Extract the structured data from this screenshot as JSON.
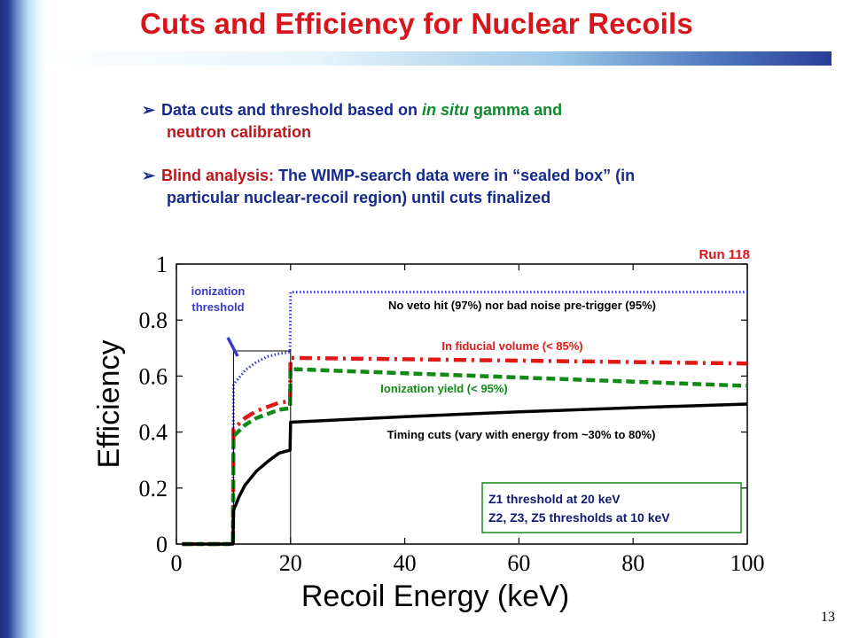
{
  "slide": {
    "title": "Cuts and Efficiency for Nuclear Recoils",
    "page_number": "13",
    "bullets": [
      {
        "marker": "➢",
        "parts": [
          {
            "text": "Data cuts and threshold based  on ",
            "color": "#142a8c",
            "italic": false
          },
          {
            "text": "in situ",
            "color": "#0f8a2e",
            "italic": true
          },
          {
            "text": " gamma and",
            "color": "#0f8a2e",
            "italic": false
          }
        ],
        "cont": [
          {
            "text": "neutron  calibration",
            "color": "#c0141c",
            "italic": false
          }
        ]
      },
      {
        "marker": "➢",
        "parts": [
          {
            "text": "Blind analysis:",
            "color": "#c0141c",
            "italic": false
          },
          {
            "text": " The WIMP-search  data were in “sealed box” (in",
            "color": "#142a8c",
            "italic": false
          }
        ],
        "cont": [
          {
            "text": "particular nuclear-recoil region) until cuts finalized",
            "color": "#142a8c",
            "italic": false
          }
        ]
      }
    ]
  },
  "chart_data": {
    "type": "line",
    "xlabel": "Recoil Energy (keV)",
    "ylabel": "Efficiency",
    "xlim": [
      0,
      100
    ],
    "ylim": [
      0,
      1
    ],
    "xticks": [
      "0",
      "20",
      "40",
      "60",
      "80",
      "100"
    ],
    "yticks": [
      "0",
      "0.2",
      "0.4",
      "0.6",
      "0.8",
      "1"
    ],
    "run_label": "Run 118",
    "series": [
      {
        "key": "veto",
        "color": "#3a3ac8",
        "style": "dotted",
        "points": [
          [
            1,
            0
          ],
          [
            9.9,
            0
          ],
          [
            10,
            0.57
          ],
          [
            12,
            0.62
          ],
          [
            14,
            0.65
          ],
          [
            16,
            0.67
          ],
          [
            18,
            0.68
          ],
          [
            19.9,
            0.685
          ],
          [
            20,
            0.9
          ],
          [
            30,
            0.9
          ],
          [
            50,
            0.9
          ],
          [
            70,
            0.9
          ],
          [
            100,
            0.9
          ]
        ]
      },
      {
        "key": "fiducial",
        "color": "#e01818",
        "style": "dashdot",
        "points": [
          [
            1,
            0
          ],
          [
            9.9,
            0
          ],
          [
            10,
            0.41
          ],
          [
            12,
            0.45
          ],
          [
            14,
            0.475
          ],
          [
            16,
            0.49
          ],
          [
            18,
            0.505
          ],
          [
            19.9,
            0.51
          ],
          [
            20,
            0.665
          ],
          [
            40,
            0.66
          ],
          [
            60,
            0.655
          ],
          [
            80,
            0.65
          ],
          [
            100,
            0.645
          ]
        ]
      },
      {
        "key": "yield",
        "color": "#138a18",
        "style": "dashed",
        "points": [
          [
            1,
            0
          ],
          [
            9.9,
            0
          ],
          [
            10,
            0.385
          ],
          [
            12,
            0.425
          ],
          [
            14,
            0.45
          ],
          [
            16,
            0.465
          ],
          [
            18,
            0.48
          ],
          [
            19.9,
            0.485
          ],
          [
            20,
            0.625
          ],
          [
            40,
            0.61
          ],
          [
            60,
            0.595
          ],
          [
            80,
            0.58
          ],
          [
            100,
            0.565
          ]
        ]
      },
      {
        "key": "timing",
        "color": "#000000",
        "style": "solid",
        "points": [
          [
            1,
            0
          ],
          [
            9.9,
            0
          ],
          [
            10,
            0.12
          ],
          [
            11,
            0.17
          ],
          [
            12,
            0.21
          ],
          [
            14,
            0.26
          ],
          [
            16,
            0.295
          ],
          [
            18,
            0.325
          ],
          [
            19.9,
            0.335
          ],
          [
            20,
            0.435
          ],
          [
            40,
            0.455
          ],
          [
            60,
            0.472
          ],
          [
            80,
            0.487
          ],
          [
            100,
            0.5
          ]
        ]
      },
      {
        "key": "threshold",
        "color": "#000000",
        "style": "thin",
        "points": [
          [
            10,
            0
          ],
          [
            10,
            0.69
          ],
          [
            20,
            0.69
          ],
          [
            20,
            0.0
          ]
        ]
      }
    ],
    "annotations": [
      {
        "key": "ionization_threshold",
        "lines": [
          "ionization",
          "threshold"
        ],
        "color": "#3a3ac8"
      },
      {
        "key": "veto",
        "lines": [
          "No veto hit (97%) nor bad noise pre-trigger (95%)"
        ],
        "color": "#000000"
      },
      {
        "key": "fiducial",
        "lines": [
          "In fiducial volume (< 85%)"
        ],
        "color": "#e01818"
      },
      {
        "key": "yield",
        "lines": [
          "Ionization yield (< 95%)"
        ],
        "color": "#138a18"
      },
      {
        "key": "timing",
        "lines": [
          "Timing cuts (vary with energy from ~30%  to 80%)"
        ],
        "color": "#000000"
      }
    ],
    "legend_box": {
      "lines": [
        "Z1 threshold at 20 keV",
        "Z2, Z3, Z5 thresholds at 10 keV"
      ],
      "border_color": "#138a18"
    }
  }
}
